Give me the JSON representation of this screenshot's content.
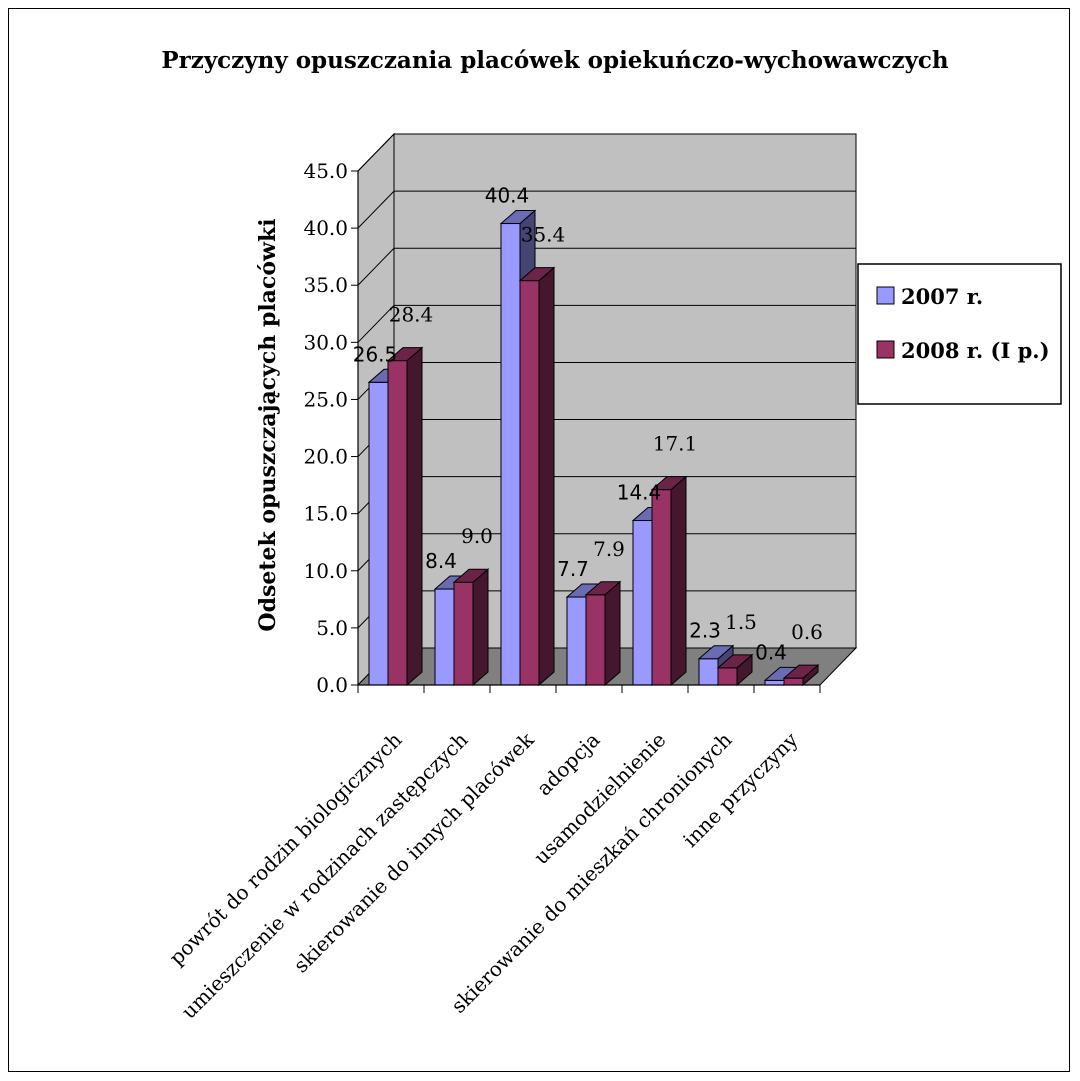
{
  "chart_data": {
    "type": "bar",
    "title": "Przyczyny opuszczania placówek opiekuńczo-wychowawczych",
    "ylabel": "Odsetek opuszczających placówki",
    "xlabel": "",
    "ylim": [
      0,
      45
    ],
    "yticks": [
      "0.0",
      "5.0",
      "10.0",
      "15.0",
      "20.0",
      "25.0",
      "30.0",
      "35.0",
      "40.0",
      "45.0"
    ],
    "grid": true,
    "legend_position": "right",
    "categories": [
      "powrót do rodzin biologicznych",
      "umieszczenie w rodzinach zastępczych",
      "skierowanie do innych placówek",
      "adopcja",
      "usamodzielnienie",
      "skierowanie do mieszkań chronionych",
      "inne przyczyny"
    ],
    "series": [
      {
        "name": "2007 r.",
        "color": "#9999ff",
        "values": [
          26.5,
          8.4,
          40.4,
          7.7,
          14.4,
          2.3,
          0.4
        ],
        "labels": [
          "26.5",
          "8.4",
          "40.4",
          "7.7",
          "14.4",
          "2.3",
          "0.4"
        ]
      },
      {
        "name": "2008 r. (I p.)",
        "color": "#993366",
        "values": [
          28.4,
          9.0,
          35.4,
          7.9,
          17.1,
          1.5,
          0.6
        ],
        "labels": [
          "28.4",
          "9.0",
          "35.4",
          "7.9",
          "17.1",
          "1.5",
          "0.6"
        ]
      }
    ]
  }
}
